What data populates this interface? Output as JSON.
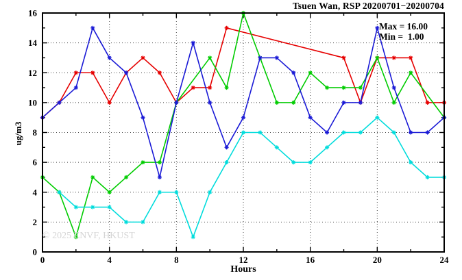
{
  "title": "Tsuen Wan, RSP 20200701−20200704",
  "legend": {
    "max_label": "Max = 16.00",
    "min_label": "Min =  1.00"
  },
  "watermark": "© 2025 ENVF, HKUST",
  "chart_data": {
    "type": "line",
    "title": "Tsuen Wan, RSP 20200701−20200704",
    "xlabel": "Hours",
    "ylabel": "ug/m3",
    "xlim": [
      0,
      24
    ],
    "ylim": [
      0,
      16
    ],
    "x_major_step": 4,
    "x_minor_step": 2,
    "y_major_step": 2,
    "y_minor_step": 1,
    "grid": true,
    "legend_position": "none",
    "stats": {
      "max": 16.0,
      "min": 1.0
    },
    "x": [
      0,
      1,
      2,
      3,
      4,
      5,
      6,
      7,
      8,
      9,
      10,
      11,
      12,
      13,
      14,
      15,
      16,
      17,
      18,
      19,
      20,
      21,
      22,
      23,
      24
    ],
    "series": [
      {
        "name": "red",
        "color": "#e60000",
        "values": [
          9,
          10,
          12,
          12,
          10,
          12,
          13,
          12,
          10,
          11,
          11,
          15,
          null,
          null,
          null,
          null,
          null,
          null,
          13,
          10,
          13,
          13,
          13,
          10,
          10
        ]
      },
      {
        "name": "green",
        "color": "#00cc00",
        "values": [
          5,
          4,
          1,
          5,
          4,
          5,
          6,
          6,
          10,
          null,
          13,
          11,
          16,
          13,
          10,
          10,
          12,
          11,
          11,
          11,
          13,
          10,
          12,
          null,
          9
        ]
      },
      {
        "name": "blue",
        "color": "#1a1ad6",
        "values": [
          9,
          10,
          11,
          15,
          13,
          12,
          9,
          5,
          10,
          14,
          10,
          7,
          9,
          13,
          13,
          12,
          9,
          8,
          10,
          10,
          15,
          11,
          8,
          8,
          9
        ]
      },
      {
        "name": "cyan",
        "color": "#00dcdc",
        "values": [
          null,
          4,
          3,
          3,
          3,
          2,
          2,
          4,
          4,
          1,
          4,
          6,
          8,
          8,
          7,
          6,
          6,
          7,
          8,
          8,
          9,
          8,
          6,
          5,
          5
        ]
      }
    ]
  },
  "colors": {
    "axis": "#000000",
    "grid": "#444444",
    "background": "#ffffff",
    "watermark": "#d5d5d5"
  }
}
